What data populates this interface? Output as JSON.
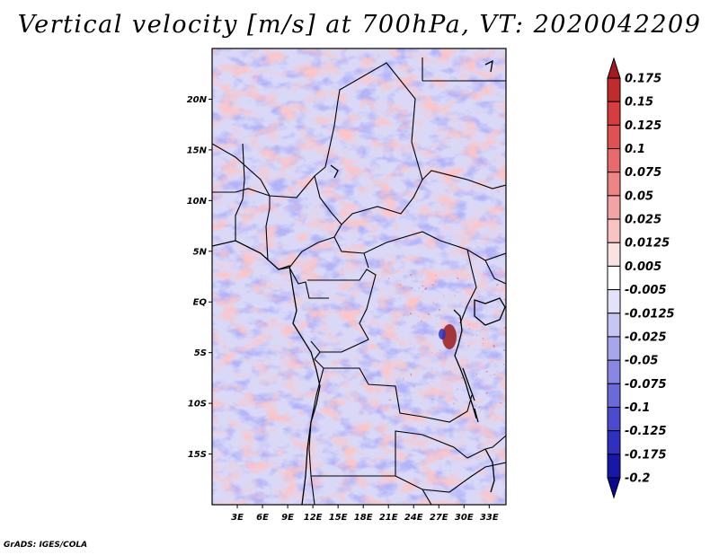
{
  "title": "Vertical velocity [m/s] at 700hPa, VT: 2020042209",
  "credit": "GrADS: IGES/COLA",
  "map": {
    "variable": "Vertical velocity",
    "units": "m/s",
    "level": "700hPa",
    "valid_time": "2020042209",
    "lat_labels": [
      "20N",
      "15N",
      "10N",
      "5N",
      "EQ",
      "5S",
      "10S",
      "15S"
    ],
    "lat_values": [
      20,
      15,
      10,
      5,
      0,
      -5,
      -10,
      -15
    ],
    "lon_labels": [
      "3E",
      "6E",
      "9E",
      "12E",
      "15E",
      "18E",
      "21E",
      "24E",
      "27E",
      "30E",
      "33E"
    ],
    "lon_values": [
      3,
      6,
      9,
      12,
      15,
      18,
      21,
      24,
      27,
      30,
      33
    ],
    "lat_range": [
      -20,
      25
    ],
    "lon_range": [
      0,
      35
    ]
  },
  "colorbar": {
    "labels": [
      "0.175",
      "0.15",
      "0.125",
      "0.1",
      "0.075",
      "0.05",
      "0.025",
      "0.0125",
      "0.005",
      "-0.005",
      "-0.0125",
      "-0.025",
      "-0.05",
      "-0.075",
      "-0.1",
      "-0.125",
      "-0.175",
      "-0.2"
    ],
    "colors": [
      "#a51b1b",
      "#c02b2b",
      "#d63d3d",
      "#e05252",
      "#e86a6a",
      "#ee8585",
      "#f3a3a3",
      "#f8c3c3",
      "#fbe2e2",
      "#ffffff",
      "#e2e2fb",
      "#c6c6f4",
      "#a6a6ec",
      "#8888e4",
      "#6a6adb",
      "#4b4bd0",
      "#2f2fc0",
      "#1818a8",
      "#0a0a90"
    ]
  }
}
